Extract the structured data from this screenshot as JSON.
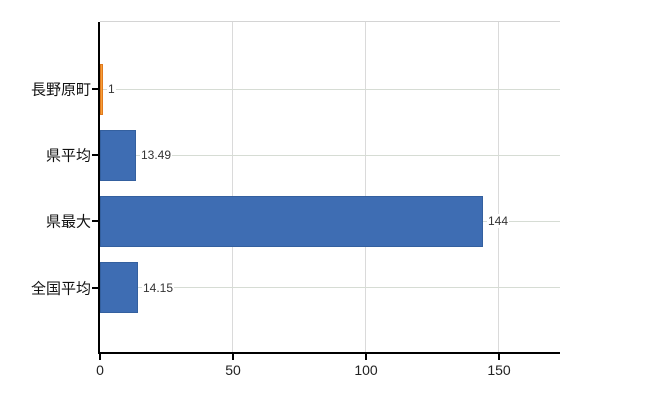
{
  "chart_data": {
    "type": "bar",
    "orientation": "horizontal",
    "title": "",
    "xlabel": "",
    "ylabel": "",
    "grid": true,
    "legend": false,
    "categories": [
      "長野原町",
      "県平均",
      "県最大",
      "全国平均"
    ],
    "values": [
      1,
      13.49,
      144,
      14.15
    ],
    "value_labels": [
      "1",
      "13.49",
      "144",
      "14.15"
    ],
    "x_ticks": [
      0,
      50,
      100,
      150
    ],
    "x_tick_labels": [
      "0",
      "50",
      "100",
      "150"
    ],
    "xlim": [
      0,
      173
    ],
    "bar_colors": [
      "#f6a038",
      "#3e6db3",
      "#3e6db3",
      "#3e6db3"
    ],
    "bar_border_colors": [
      "#e0791e",
      "#34609f",
      "#34609f",
      "#34609f"
    ],
    "colors": {
      "axis": "#000000",
      "vertical_gridline": "#dadada",
      "horizontal_gridline": "#d6dcd4",
      "plot_top_border": "#d4d4d4",
      "background": "#ffffff",
      "value_label_text": "#333333",
      "category_label_text": "#111111",
      "x_tick_label_text": "#222222"
    }
  }
}
